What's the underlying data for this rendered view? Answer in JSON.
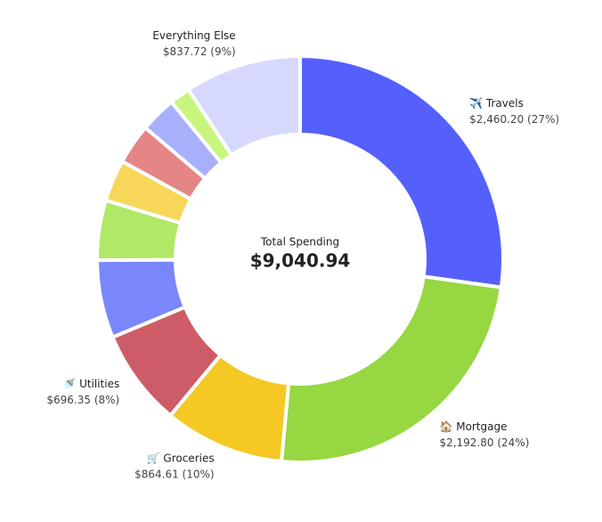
{
  "chart_data": {
    "type": "donut",
    "center_title": "Total Spending",
    "center_value": "$9,040.94",
    "categories": [
      "✈️ Travels",
      "🏠 Mortgage",
      "🛒 Groceries",
      "🚿 Utilities",
      null,
      null,
      null,
      null,
      null,
      null,
      "Everything Else"
    ],
    "values": [
      2460.2,
      2192.8,
      864.61,
      696.35,
      560,
      430,
      300,
      290,
      260,
      149.26,
      837.72
    ],
    "value_labels": [
      "$2,460.20 (27%)",
      "$2,192.80 (24%)",
      "$864.61 (10%)",
      "$696.35 (8%)",
      null,
      null,
      null,
      null,
      null,
      null,
      "$837.72 (9%)"
    ],
    "colors": [
      "#5560fc",
      "#97d742",
      "#f5c823",
      "#cd5c66",
      "#7a86fb",
      "#b1e865",
      "#f7d65a",
      "#e58585",
      "#a9b0fb",
      "#c8f57d",
      "#d6d8fd"
    ]
  }
}
